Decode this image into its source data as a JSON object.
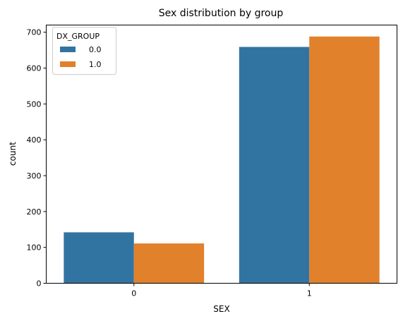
{
  "chart_data": {
    "type": "bar",
    "title": "Sex distribution by group",
    "xlabel": "SEX",
    "ylabel": "count",
    "categories": [
      "0",
      "1"
    ],
    "series": [
      {
        "name": "0.0",
        "values": [
          142,
          659
        ],
        "color": "#3274a1"
      },
      {
        "name": "1.0",
        "values": [
          111,
          688
        ],
        "color": "#e1812c"
      }
    ],
    "ylim": [
      0,
      720
    ],
    "yticks": [
      0,
      100,
      200,
      300,
      400,
      500,
      600,
      700
    ],
    "legend": {
      "title": "DX_GROUP",
      "placement": "top-left"
    },
    "grid": false
  }
}
